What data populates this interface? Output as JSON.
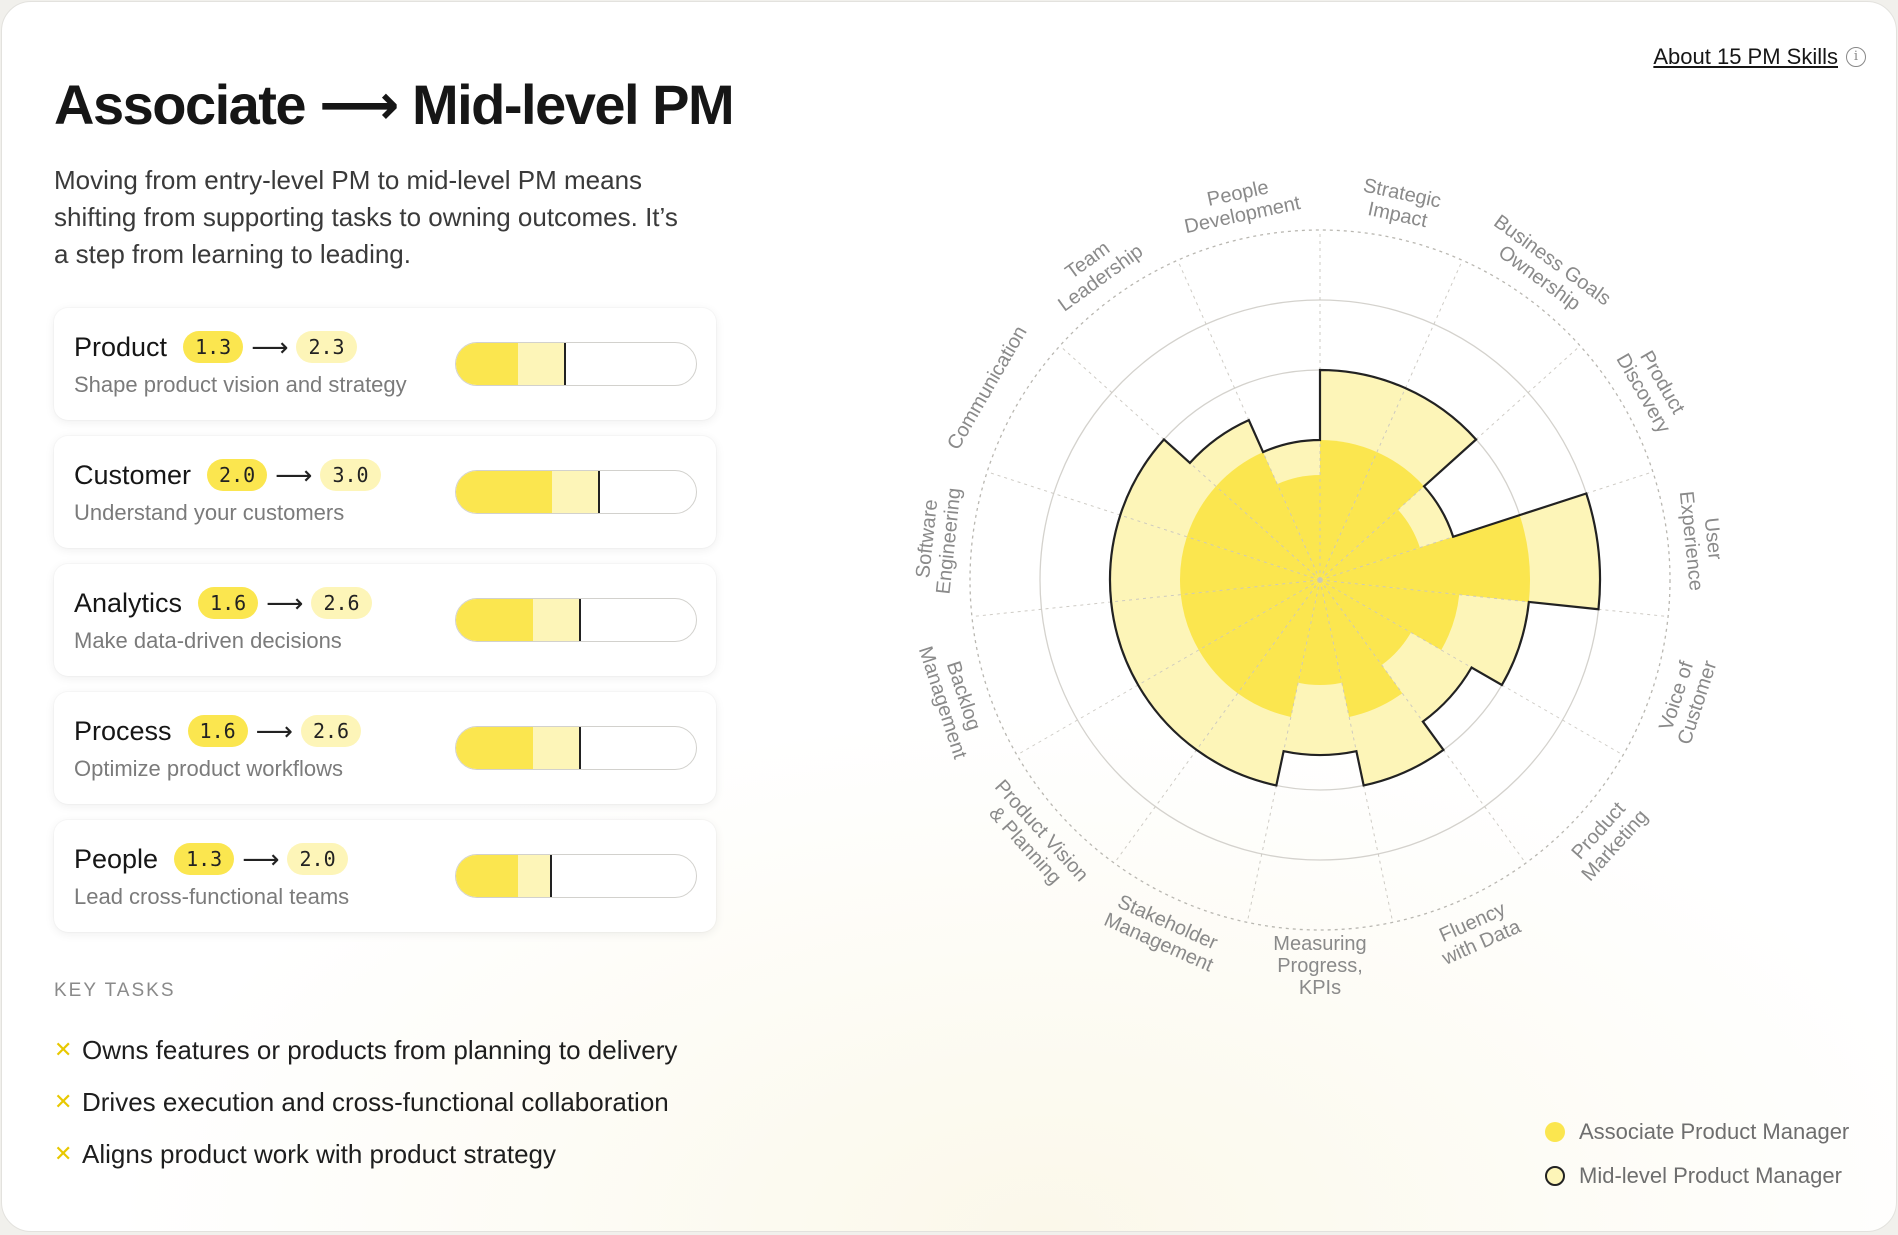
{
  "title": "Associate ⟶ Mid-level PM",
  "subtitle": "Moving from entry-level PM to mid-level PM means shifting from supporting tasks to owning outcomes. It’s a step from learning to leading.",
  "about": {
    "label": "About 15 PM Skills",
    "icon": "info-icon"
  },
  "skills": [
    {
      "name": "Product",
      "from": "1.3",
      "to": "2.3",
      "description": "Shape product vision and strategy",
      "from_value": 1.3,
      "to_value": 2.3
    },
    {
      "name": "Customer",
      "from": "2.0",
      "to": "3.0",
      "description": "Understand your customers",
      "from_value": 2.0,
      "to_value": 3.0
    },
    {
      "name": "Analytics",
      "from": "1.6",
      "to": "2.6",
      "description": "Make data-driven decisions",
      "from_value": 1.6,
      "to_value": 2.6
    },
    {
      "name": "Process",
      "from": "1.6",
      "to": "2.6",
      "description": "Optimize product workflows",
      "from_value": 1.6,
      "to_value": 2.6
    },
    {
      "name": "People",
      "from": "1.3",
      "to": "2.0",
      "description": "Lead cross-functional teams",
      "from_value": 1.3,
      "to_value": 2.0
    }
  ],
  "skill_bar_max": 5,
  "key_tasks": {
    "label": "KEY  TASKS",
    "items": [
      "Owns features or products from planning to delivery",
      "Drives execution and cross-functional collaboration",
      "Aligns product work with product strategy"
    ]
  },
  "legend": [
    {
      "label": "Associate Product Manager",
      "style": "filled"
    },
    {
      "label": "Mid-level Product Manager",
      "style": "outlined"
    }
  ],
  "colors": {
    "associate": "#fbe64f",
    "midlevel": "#fdf5b8",
    "outline": "#222222",
    "grid": "#cfcdc8"
  },
  "chart_data": {
    "type": "polar-area",
    "rmax": 5,
    "rings": [
      1,
      2,
      3,
      4,
      5
    ],
    "grid": true,
    "legend_position": "bottom-right",
    "categories": [
      "Strategic Impact",
      "Business Goals Ownership",
      "Product Discovery",
      "User Experience",
      "Voice of Customer",
      "Product Marketing",
      "Fluency with Data",
      "Measuring Progress, KPIs",
      "Stakeholder Management",
      "Product Vision & Planning",
      "Backlog Management",
      "Software Engineering",
      "Communication",
      "Team Leadership",
      "People Development"
    ],
    "label_lines": [
      [
        "Strategic",
        "Impact"
      ],
      [
        "Business Goals",
        "Ownership"
      ],
      [
        "Product",
        "Discovery"
      ],
      [
        "User",
        "Experience"
      ],
      [
        "Voice of",
        "Customer"
      ],
      [
        "Product",
        "Marketing"
      ],
      [
        "Fluency",
        "with Data"
      ],
      [
        "Measuring",
        "Progress,",
        "KPIs"
      ],
      [
        "Stakeholder",
        "Management"
      ],
      [
        "Product Vision",
        "& Planning"
      ],
      [
        "Backlog",
        "Management"
      ],
      [
        "Software",
        "Engineering"
      ],
      [
        "Communication"
      ],
      [
        "Team",
        "Leadership"
      ],
      [
        "People",
        "Development"
      ]
    ],
    "series": [
      {
        "name": "Associate Product Manager",
        "values": [
          2.0,
          2.0,
          1.5,
          3.0,
          2.0,
          1.5,
          2.0,
          1.5,
          2.0,
          2.0,
          2.0,
          2.0,
          2.0,
          2.0,
          1.5
        ]
      },
      {
        "name": "Mid-level Product Manager",
        "values": [
          3.0,
          3.0,
          2.0,
          4.0,
          3.0,
          2.5,
          3.0,
          2.5,
          3.0,
          3.0,
          3.0,
          3.0,
          3.0,
          2.5,
          2.0
        ]
      }
    ]
  }
}
